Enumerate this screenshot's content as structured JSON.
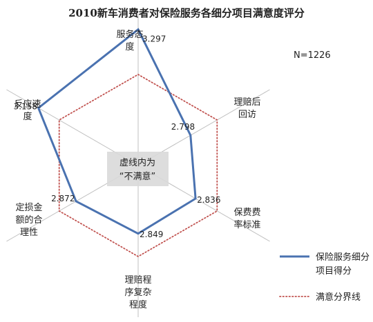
{
  "chart_data": {
    "type": "radar",
    "title": "2010新车消费者对保险服务各细分项目满意度评分",
    "sample_note": "N=1226",
    "categories": [
      [
        "服务态",
        "度"
      ],
      [
        "理赔后",
        "回访"
      ],
      [
        "保费费",
        "率标准"
      ],
      [
        "理赔程",
        "序复杂",
        "程度"
      ],
      [
        "定损金",
        "额的合",
        "理性"
      ],
      [
        "反应速",
        "度"
      ]
    ],
    "series": [
      {
        "name": "保险服务细分项目得分",
        "values": [
          3.297,
          2.798,
          2.836,
          2.849,
          2.872,
          3.158
        ],
        "color": "#4a72b0"
      },
      {
        "name": "满意分界线",
        "values": [
          3.0,
          3.0,
          3.0,
          3.0,
          3.0,
          3.0
        ],
        "color": "#c0504d"
      }
    ],
    "value_labels": [
      "3.297",
      "2.798",
      "2.836",
      "2.849",
      "2.872",
      "3.158"
    ],
    "rlim": [
      2.4,
      3.4
    ],
    "note_lines": [
      "虚线内为",
      "“不满意”"
    ],
    "legend_position": "bottom-right"
  }
}
